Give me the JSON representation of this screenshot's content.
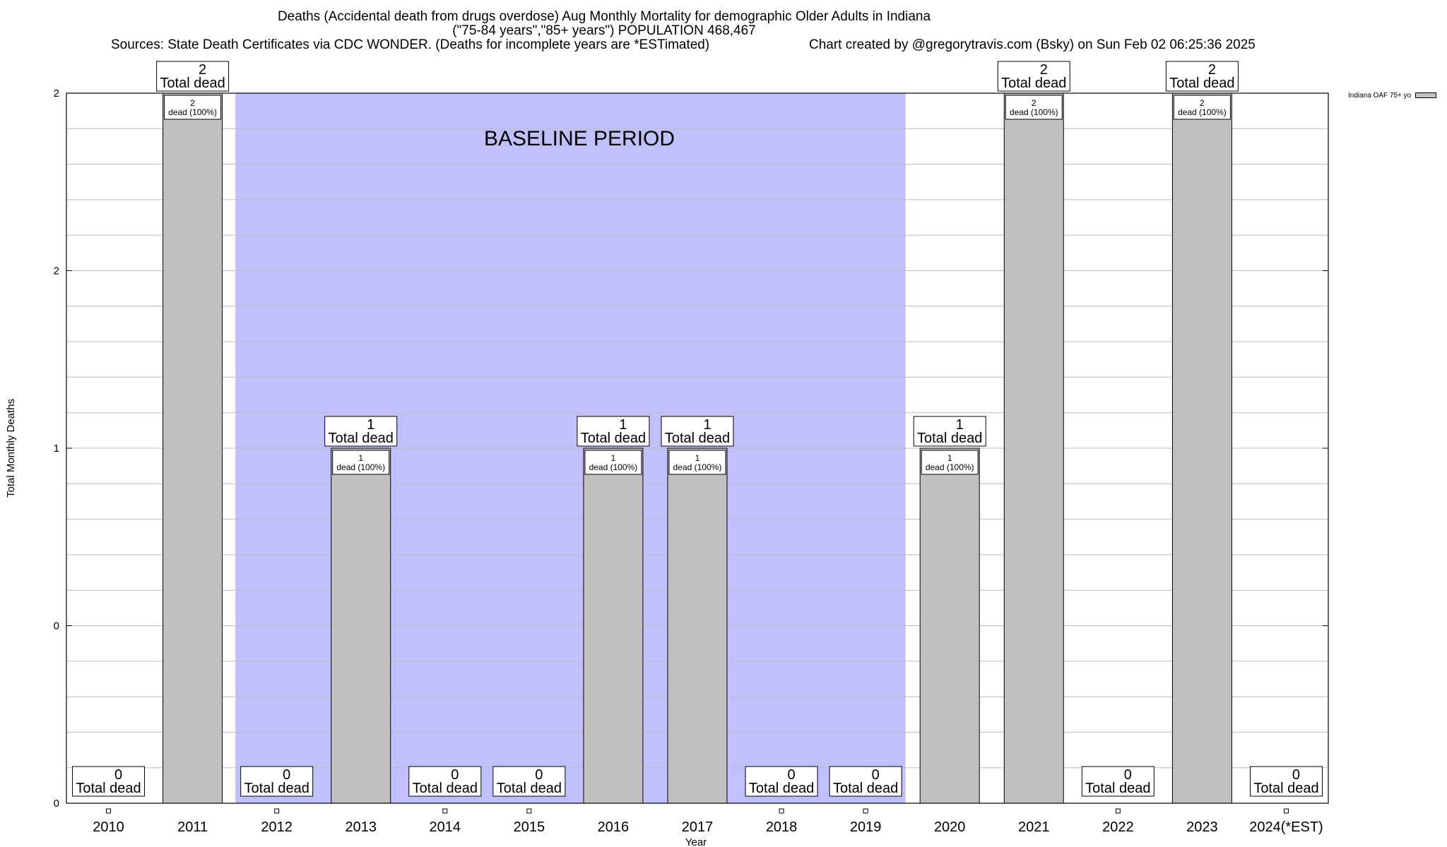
{
  "chart_data": {
    "type": "bar",
    "title_lines": [
      "Deaths (Accidental death from drugs overdose) Aug Monthly Mortality for demographic Older Adults in Indiana",
      "(\"75-84 years\",\"85+ years\") POPULATION 468,467"
    ],
    "sources": "Sources: State Death Certificates via CDC WONDER. (Deaths for incomplete years are *ESTimated)",
    "credit": "Chart created by @gregorytravis.com (Bsky) on Sun Feb 02 06:25:36 2025",
    "xlabel": "Year",
    "ylabel": "Total Monthly Deaths",
    "categories": [
      "2010",
      "2011",
      "2012",
      "2013",
      "2014",
      "2015",
      "2016",
      "2017",
      "2018",
      "2019",
      "2020",
      "2021",
      "2022",
      "2023",
      "2024(*EST)"
    ],
    "values": [
      0,
      2,
      0,
      1,
      0,
      0,
      1,
      1,
      0,
      0,
      1,
      2,
      0,
      2,
      0
    ],
    "ylim": [
      0,
      2
    ],
    "ytick_labels": [
      "0",
      "0",
      "1",
      "2",
      "2"
    ],
    "grid": true,
    "baseline_period": {
      "label": "BASELINE PERIOD",
      "from": "2012",
      "to": "2019",
      "color": "#c0c0fc"
    },
    "bar_color": "#c0c0c0",
    "total_label_suffix": "Total dead",
    "inner_label_suffix": "dead (100%)",
    "legend": {
      "label": "Indiana OAF 75+ yo",
      "placement": "top-right"
    }
  }
}
